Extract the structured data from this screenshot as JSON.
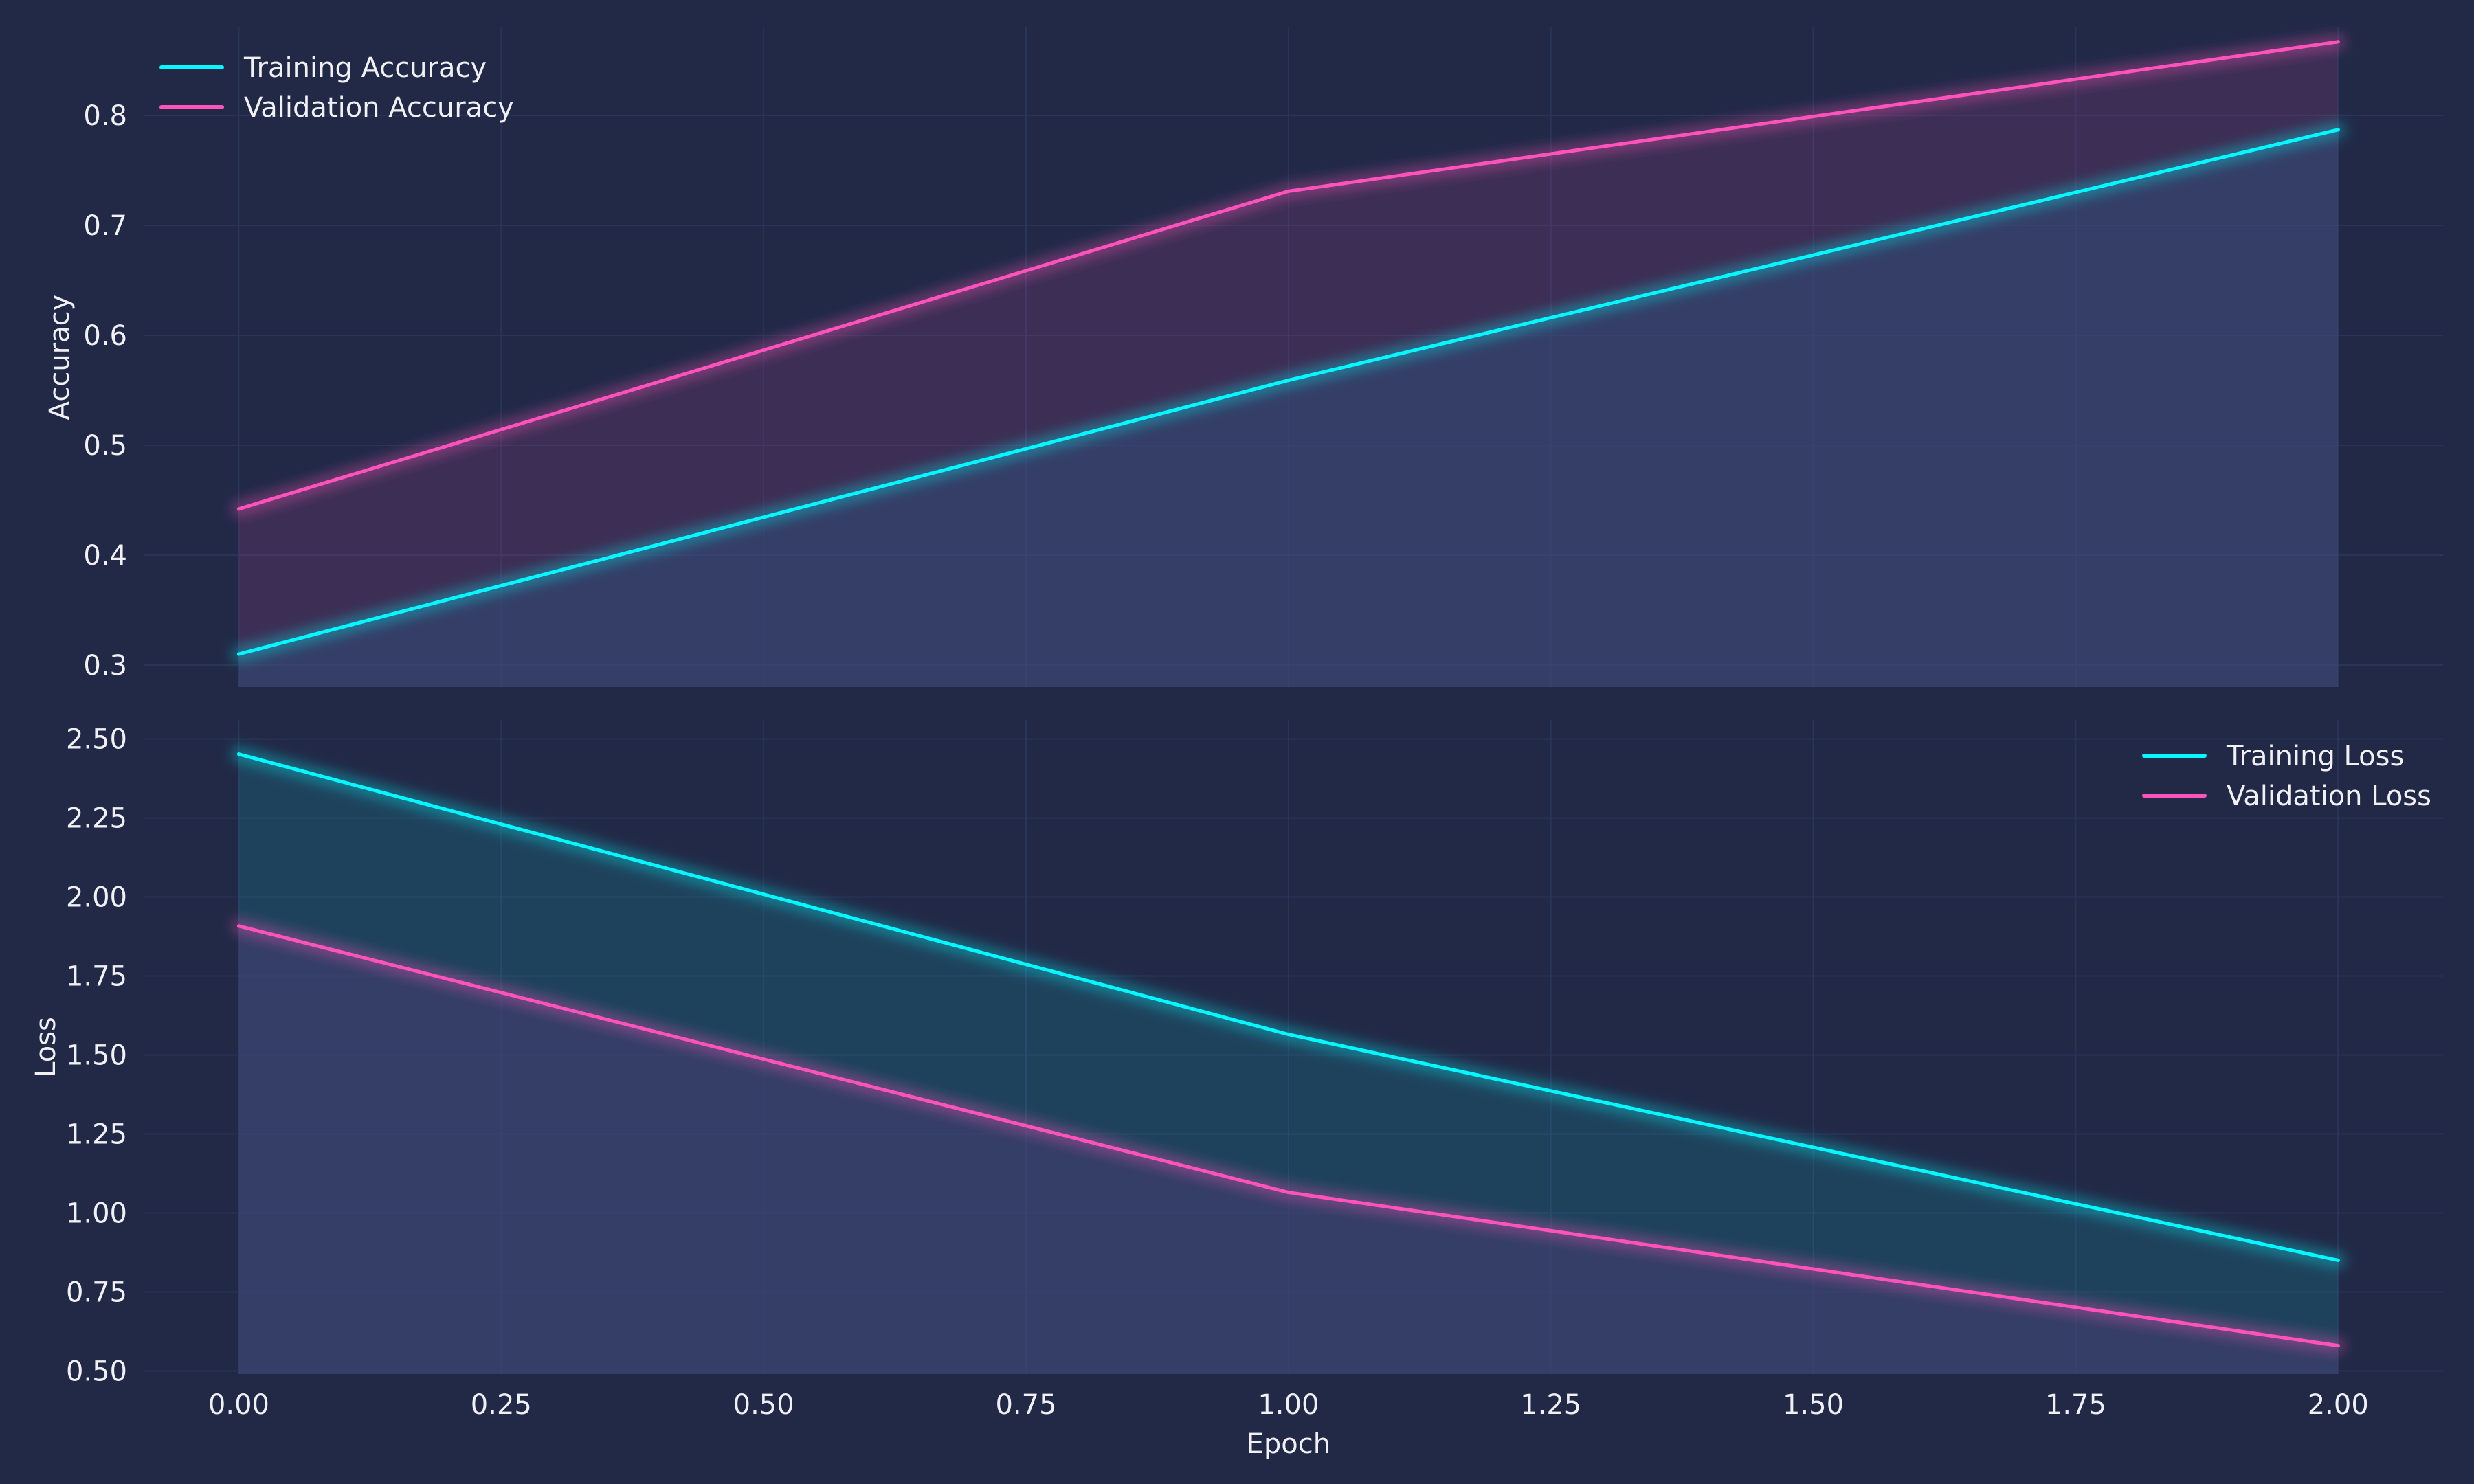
{
  "theme": {
    "background": "#212946",
    "grid": "#2A3459",
    "text": "#F0F0F5",
    "training_color": "#08F7FE",
    "validation_color": "#FE53BB"
  },
  "chart_data": [
    {
      "type": "line",
      "title": "",
      "xlabel": "",
      "ylabel": "Accuracy",
      "xlim": [
        -0.09,
        2.1
      ],
      "ylim": [
        0.28,
        0.88
      ],
      "xticks": [
        0.0,
        0.25,
        0.5,
        0.75,
        1.0,
        1.25,
        1.5,
        1.75,
        2.0
      ],
      "yticks": [
        0.3,
        0.4,
        0.5,
        0.6,
        0.7,
        0.8
      ],
      "ytick_labels": [
        "0.3",
        "0.4",
        "0.5",
        "0.6",
        "0.7",
        "0.8"
      ],
      "grid": true,
      "legend": "top-left",
      "x": [
        0,
        1,
        2
      ],
      "series": [
        {
          "name": "Training Accuracy",
          "color": "#08F7FE",
          "values": [
            0.31,
            0.559,
            0.787
          ]
        },
        {
          "name": "Validation Accuracy",
          "color": "#FE53BB",
          "values": [
            0.442,
            0.731,
            0.867
          ]
        }
      ]
    },
    {
      "type": "line",
      "title": "",
      "xlabel": "Epoch",
      "ylabel": "Loss",
      "xlim": [
        -0.09,
        2.1
      ],
      "ylim": [
        0.49,
        2.56
      ],
      "xticks": [
        0.0,
        0.25,
        0.5,
        0.75,
        1.0,
        1.25,
        1.5,
        1.75,
        2.0
      ],
      "xtick_labels": [
        "0.00",
        "0.25",
        "0.50",
        "0.75",
        "1.00",
        "1.25",
        "1.50",
        "1.75",
        "2.00"
      ],
      "yticks": [
        0.5,
        0.75,
        1.0,
        1.25,
        1.5,
        1.75,
        2.0,
        2.25,
        2.5
      ],
      "ytick_labels": [
        "0.50",
        "0.75",
        "1.00",
        "1.25",
        "1.50",
        "1.75",
        "2.00",
        "2.25",
        "2.50"
      ],
      "grid": true,
      "legend": "top-right",
      "x": [
        0,
        1,
        2
      ],
      "series": [
        {
          "name": "Training Loss",
          "color": "#08F7FE",
          "values": [
            2.452,
            1.565,
            0.85
          ]
        },
        {
          "name": "Validation Loss",
          "color": "#FE53BB",
          "values": [
            1.908,
            1.065,
            0.58
          ]
        }
      ]
    }
  ]
}
